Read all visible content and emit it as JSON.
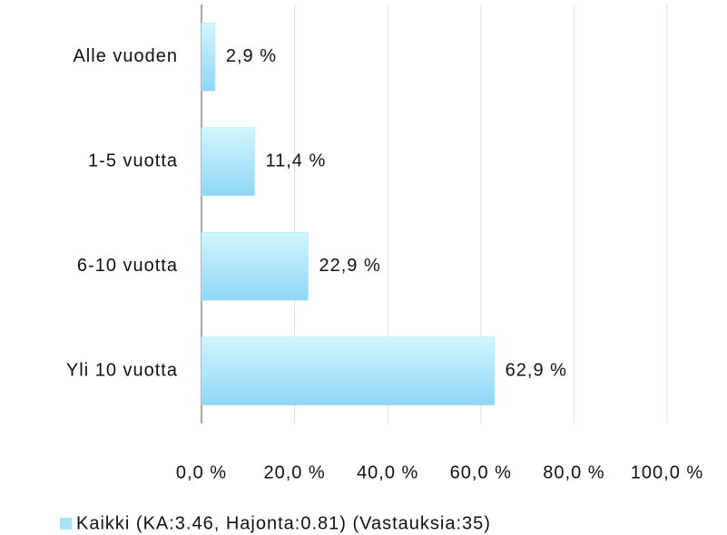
{
  "chart_data": {
    "type": "bar",
    "orientation": "horizontal",
    "categories": [
      "Alle vuoden",
      "1-5 vuotta",
      "6-10 vuotta",
      "Yli 10 vuotta"
    ],
    "series": [
      {
        "name": "Kaikki (KA:3.46, Hajonta:0.81) (Vastauksia:35)",
        "color": "#a6e4fb",
        "values": [
          2.9,
          11.4,
          22.9,
          62.9
        ],
        "value_labels": [
          "2,9 %",
          "11,4 %",
          "22,9 %",
          "62,9 %"
        ]
      }
    ],
    "xlim": [
      0,
      100
    ],
    "xticks": [
      {
        "value": 0,
        "label": "0,0 %"
      },
      {
        "value": 20,
        "label": "20,0 %"
      },
      {
        "value": 40,
        "label": "40,0 %"
      },
      {
        "value": 60,
        "label": "60,0 %"
      },
      {
        "value": 80,
        "label": "80,0 %"
      },
      {
        "value": 100,
        "label": "100,0 %"
      }
    ],
    "grid": true,
    "legend": "bottom"
  }
}
